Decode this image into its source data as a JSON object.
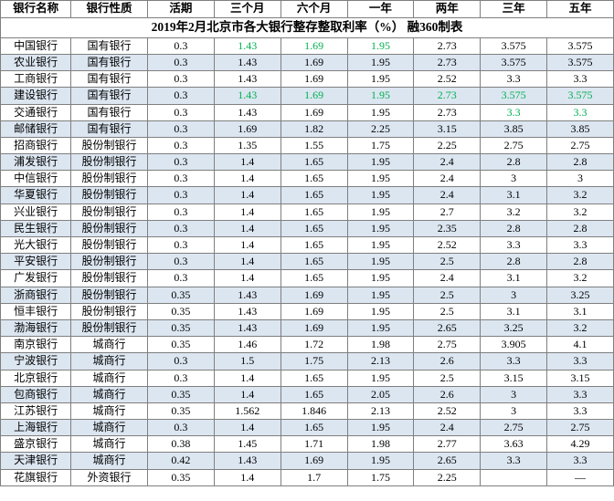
{
  "title": "2019年2月北京市各大银行整存整取利率（%） 融360制表",
  "columns": [
    "银行名称",
    "银行性质",
    "活期",
    "三个月",
    "六个月",
    "一年",
    "两年",
    "三年",
    "五年"
  ],
  "col_classes": [
    "col-name",
    "col-type",
    "col-rate",
    "col-rate",
    "col-rate",
    "col-rate",
    "col-rate",
    "col-rate",
    "col-rate"
  ],
  "highlight_color": "#00b050",
  "alt_row_bg": "#dce6f1",
  "border_color": "#7f7f7f",
  "rows": [
    {
      "c": [
        "中国银行",
        "国有银行",
        "0.3",
        "1.43",
        "1.69",
        "1.95",
        "2.73",
        "3.575",
        "3.575"
      ],
      "hl": [
        3,
        4,
        5
      ]
    },
    {
      "c": [
        "农业银行",
        "国有银行",
        "0.3",
        "1.43",
        "1.69",
        "1.95",
        "2.73",
        "3.575",
        "3.575"
      ]
    },
    {
      "c": [
        "工商银行",
        "国有银行",
        "0.3",
        "1.43",
        "1.69",
        "1.95",
        "2.52",
        "3.3",
        "3.3"
      ]
    },
    {
      "c": [
        "建设银行",
        "国有银行",
        "0.3",
        "1.43",
        "1.69",
        "1.95",
        "2.73",
        "3.575",
        "3.575"
      ],
      "hl": [
        3,
        4,
        5,
        6,
        7,
        8
      ]
    },
    {
      "c": [
        "交通银行",
        "国有银行",
        "0.3",
        "1.43",
        "1.69",
        "1.95",
        "2.73",
        "3.3",
        "3.3"
      ],
      "hl": [
        7,
        8
      ]
    },
    {
      "c": [
        "邮储银行",
        "国有银行",
        "0.3",
        "1.69",
        "1.82",
        "2.25",
        "3.15",
        "3.85",
        "3.85"
      ]
    },
    {
      "c": [
        "招商银行",
        "股份制银行",
        "0.3",
        "1.35",
        "1.55",
        "1.75",
        "2.25",
        "2.75",
        "2.75"
      ]
    },
    {
      "c": [
        "浦发银行",
        "股份制银行",
        "0.3",
        "1.4",
        "1.65",
        "1.95",
        "2.4",
        "2.8",
        "2.8"
      ]
    },
    {
      "c": [
        "中信银行",
        "股份制银行",
        "0.3",
        "1.4",
        "1.65",
        "1.95",
        "2.4",
        "3",
        "3"
      ]
    },
    {
      "c": [
        "华夏银行",
        "股份制银行",
        "0.3",
        "1.4",
        "1.65",
        "1.95",
        "2.4",
        "3.1",
        "3.2"
      ]
    },
    {
      "c": [
        "兴业银行",
        "股份制银行",
        "0.3",
        "1.4",
        "1.65",
        "1.95",
        "2.7",
        "3.2",
        "3.2"
      ]
    },
    {
      "c": [
        "民生银行",
        "股份制银行",
        "0.3",
        "1.4",
        "1.65",
        "1.95",
        "2.35",
        "2.8",
        "2.8"
      ]
    },
    {
      "c": [
        "光大银行",
        "股份制银行",
        "0.3",
        "1.4",
        "1.65",
        "1.95",
        "2.52",
        "3.3",
        "3.3"
      ]
    },
    {
      "c": [
        "平安银行",
        "股份制银行",
        "0.3",
        "1.4",
        "1.65",
        "1.95",
        "2.5",
        "2.8",
        "2.8"
      ]
    },
    {
      "c": [
        "广发银行",
        "股份制银行",
        "0.3",
        "1.4",
        "1.65",
        "1.95",
        "2.4",
        "3.1",
        "3.2"
      ]
    },
    {
      "c": [
        "浙商银行",
        "股份制银行",
        "0.35",
        "1.43",
        "1.69",
        "1.95",
        "2.5",
        "3",
        "3.25"
      ]
    },
    {
      "c": [
        "恒丰银行",
        "股份制银行",
        "0.35",
        "1.43",
        "1.69",
        "1.95",
        "2.5",
        "3.1",
        "3.1"
      ]
    },
    {
      "c": [
        "渤海银行",
        "股份制银行",
        "0.35",
        "1.43",
        "1.69",
        "1.95",
        "2.65",
        "3.25",
        "3.2"
      ]
    },
    {
      "c": [
        "南京银行",
        "城商行",
        "0.35",
        "1.46",
        "1.72",
        "1.98",
        "2.75",
        "3.905",
        "4.1"
      ]
    },
    {
      "c": [
        "宁波银行",
        "城商行",
        "0.3",
        "1.5",
        "1.75",
        "2.13",
        "2.6",
        "3.3",
        "3.3"
      ]
    },
    {
      "c": [
        "北京银行",
        "城商行",
        "0.3",
        "1.4",
        "1.65",
        "1.95",
        "2.5",
        "3.15",
        "3.15"
      ]
    },
    {
      "c": [
        "包商银行",
        "城商行",
        "0.35",
        "1.4",
        "1.65",
        "2.05",
        "2.6",
        "3",
        "3.3"
      ]
    },
    {
      "c": [
        "江苏银行",
        "城商行",
        "0.35",
        "1.562",
        "1.846",
        "2.13",
        "2.52",
        "3",
        "3.3"
      ]
    },
    {
      "c": [
        "上海银行",
        "城商行",
        "0.3",
        "1.4",
        "1.65",
        "1.95",
        "2.4",
        "2.75",
        "2.75"
      ]
    },
    {
      "c": [
        "盛京银行",
        "城商行",
        "0.38",
        "1.45",
        "1.71",
        "1.98",
        "2.77",
        "3.63",
        "4.29"
      ]
    },
    {
      "c": [
        "天津银行",
        "城商行",
        "0.42",
        "1.43",
        "1.69",
        "1.95",
        "2.65",
        "3.3",
        "3.3"
      ]
    },
    {
      "c": [
        "花旗银行",
        "外资银行",
        "0.35",
        "1.4",
        "1.7",
        "1.75",
        "2.25",
        "",
        "—"
      ]
    }
  ]
}
